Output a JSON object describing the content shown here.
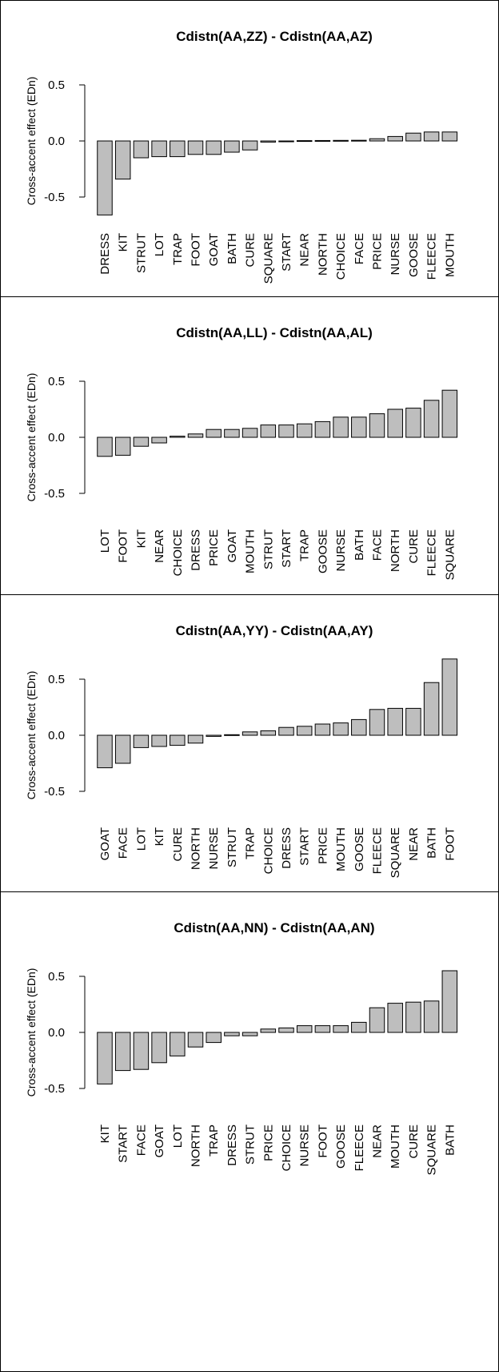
{
  "chart_data": [
    {
      "type": "bar",
      "title": "Cdistn(AA,ZZ) - Cdistn(AA,AZ)",
      "ylabel": "Cross-accent effect (EDn)",
      "ylim": [
        -0.5,
        0.5
      ],
      "yticks": [
        "-0.5",
        "0.0",
        "0.5"
      ],
      "categories": [
        "DRESS",
        "KIT",
        "STRUT",
        "LOT",
        "TRAP",
        "FOOT",
        "GOAT",
        "BATH",
        "CURE",
        "SQUARE",
        "START",
        "NEAR",
        "NORTH",
        "CHOICE",
        "FACE",
        "PRICE",
        "NURSE",
        "GOOSE",
        "FLEECE",
        "MOUTH"
      ],
      "values": [
        -0.66,
        -0.34,
        -0.15,
        -0.14,
        -0.14,
        -0.12,
        -0.12,
        -0.1,
        -0.08,
        -0.01,
        -0.005,
        0.003,
        0.004,
        0.005,
        0.006,
        0.02,
        0.04,
        0.07,
        0.08,
        0.08
      ]
    },
    {
      "type": "bar",
      "title": "Cdistn(AA,LL) - Cdistn(AA,AL)",
      "ylabel": "Cross-accent effect (EDn)",
      "ylim": [
        -0.5,
        0.5
      ],
      "yticks": [
        "-0.5",
        "0.0",
        "0.5"
      ],
      "categories": [
        "LOT",
        "FOOT",
        "KIT",
        "NEAR",
        "CHOICE",
        "DRESS",
        "PRICE",
        "GOAT",
        "MOUTH",
        "STRUT",
        "START",
        "TRAP",
        "GOOSE",
        "NURSE",
        "BATH",
        "FACE",
        "NORTH",
        "CURE",
        "FLEECE",
        "SQUARE"
      ],
      "values": [
        -0.17,
        -0.16,
        -0.08,
        -0.05,
        0.01,
        0.03,
        0.07,
        0.07,
        0.08,
        0.11,
        0.11,
        0.12,
        0.14,
        0.18,
        0.18,
        0.21,
        0.25,
        0.26,
        0.33,
        0.42
      ]
    },
    {
      "type": "bar",
      "title": "Cdistn(AA,YY) - Cdistn(AA,AY)",
      "ylabel": "Cross-accent effect (EDn)",
      "ylim": [
        -0.5,
        0.5
      ],
      "yticks": [
        "-0.5",
        "0.0",
        "0.5"
      ],
      "categories": [
        "GOAT",
        "FACE",
        "LOT",
        "KIT",
        "CURE",
        "NORTH",
        "NURSE",
        "STRUT",
        "TRAP",
        "CHOICE",
        "DRESS",
        "START",
        "PRICE",
        "MOUTH",
        "GOOSE",
        "FLEECE",
        "SQUARE",
        "NEAR",
        "BATH",
        "FOOT"
      ],
      "values": [
        -0.29,
        -0.25,
        -0.11,
        -0.1,
        -0.09,
        -0.07,
        -0.01,
        0.005,
        0.03,
        0.04,
        0.07,
        0.08,
        0.1,
        0.11,
        0.14,
        0.23,
        0.24,
        0.24,
        0.47,
        0.68
      ]
    },
    {
      "type": "bar",
      "title": "Cdistn(AA,NN) - Cdistn(AA,AN)",
      "ylabel": "Cross-accent effect (EDn)",
      "ylim": [
        -0.5,
        0.5
      ],
      "yticks": [
        "-0.5",
        "0.0",
        "0.5"
      ],
      "categories": [
        "KIT",
        "START",
        "FACE",
        "GOAT",
        "LOT",
        "NORTH",
        "TRAP",
        "DRESS",
        "STRUT",
        "PRICE",
        "CHOICE",
        "NURSE",
        "FOOT",
        "GOOSE",
        "FLEECE",
        "NEAR",
        "MOUTH",
        "CURE",
        "SQUARE",
        "BATH"
      ],
      "values": [
        -0.46,
        -0.34,
        -0.33,
        -0.27,
        -0.21,
        -0.13,
        -0.09,
        -0.03,
        -0.03,
        0.03,
        0.04,
        0.06,
        0.06,
        0.06,
        0.09,
        0.22,
        0.26,
        0.27,
        0.28,
        0.55
      ]
    }
  ]
}
